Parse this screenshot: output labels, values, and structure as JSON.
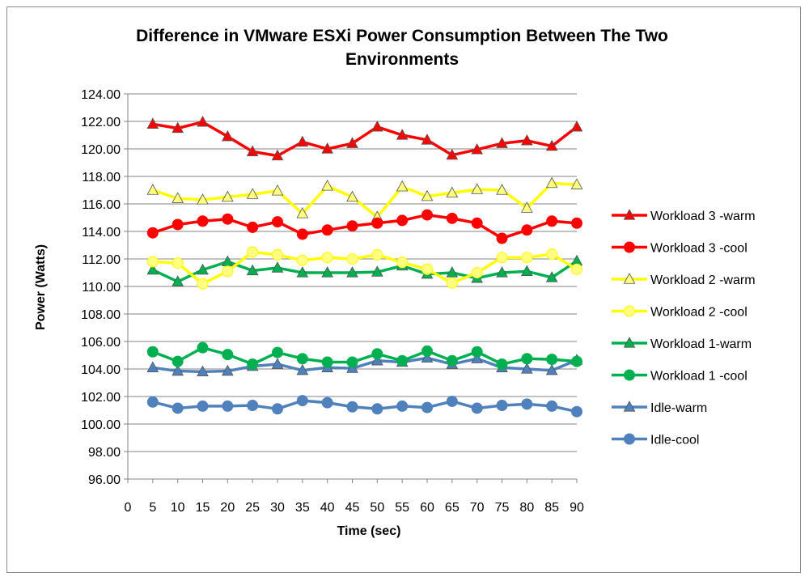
{
  "chart_data": {
    "type": "line",
    "title_lines": [
      "Difference in VMware ESXi Power Consumption  Between The Two",
      "Environments"
    ],
    "xlabel": "Time (sec)",
    "ylabel": "Power (Watts)",
    "x_ticks": [
      "0",
      "5",
      "10",
      "15",
      "20",
      "25",
      "30",
      "35",
      "40",
      "45",
      "50",
      "55",
      "60",
      "65",
      "70",
      "75",
      "80",
      "85",
      "90"
    ],
    "x": [
      5,
      10,
      15,
      20,
      25,
      30,
      35,
      40,
      45,
      50,
      55,
      60,
      65,
      70,
      75,
      80,
      85,
      90
    ],
    "xlim": [
      0,
      90
    ],
    "y_ticks": [
      "96.00",
      "98.00",
      "100.00",
      "102.00",
      "104.00",
      "106.00",
      "108.00",
      "110.00",
      "112.00",
      "114.00",
      "116.00",
      "118.00",
      "120.00",
      "122.00",
      "124.00"
    ],
    "ylim": [
      96,
      124
    ],
    "grid": "horizontal",
    "legend_position": "right",
    "series": [
      {
        "name": "Workload 3 -warm",
        "color": "#ff0000",
        "marker": "triangle",
        "marker_fill": "#ff0000",
        "values": [
          121.8,
          121.5,
          121.95,
          120.9,
          119.8,
          119.5,
          120.5,
          120.0,
          120.4,
          121.6,
          121.0,
          120.65,
          119.55,
          119.95,
          120.4,
          120.6,
          120.2,
          121.6
        ]
      },
      {
        "name": "Workload 3 -cool",
        "color": "#ff0000",
        "marker": "circle",
        "marker_fill": "#ff0000",
        "values": [
          113.9,
          114.5,
          114.75,
          114.9,
          114.3,
          114.7,
          113.8,
          114.1,
          114.4,
          114.6,
          114.8,
          115.2,
          114.95,
          114.6,
          113.5,
          114.1,
          114.75,
          114.6
        ]
      },
      {
        "name": "Workload 2 -warm",
        "color": "#ffff00",
        "marker": "triangle",
        "marker_fill": "#ffff80",
        "values": [
          117.0,
          116.4,
          116.3,
          116.5,
          116.7,
          116.95,
          115.3,
          117.3,
          116.5,
          115.05,
          117.25,
          116.55,
          116.8,
          117.05,
          117.0,
          115.7,
          117.5,
          117.4
        ]
      },
      {
        "name": "Workload 2 -cool",
        "color": "#ffff00",
        "marker": "circle",
        "marker_fill": "#ffff80",
        "values": [
          111.8,
          111.7,
          110.2,
          111.1,
          112.5,
          112.3,
          111.9,
          112.1,
          112.0,
          112.3,
          111.75,
          111.25,
          110.25,
          111.0,
          112.1,
          112.1,
          112.35,
          111.25
        ]
      },
      {
        "name": "Workload 1-warm",
        "color": "#00b050",
        "marker": "triangle",
        "marker_fill": "#00b050",
        "values": [
          111.2,
          110.35,
          111.2,
          111.8,
          111.15,
          111.35,
          111.0,
          111.0,
          111.0,
          111.05,
          111.5,
          110.9,
          111.0,
          110.6,
          111.0,
          111.1,
          110.65,
          111.85
        ]
      },
      {
        "name": "Workload 1 -cool",
        "color": "#00b050",
        "marker": "circle",
        "marker_fill": "#00b050",
        "values": [
          105.25,
          104.55,
          105.55,
          105.05,
          104.35,
          105.2,
          104.75,
          104.5,
          104.5,
          105.1,
          104.6,
          105.3,
          104.6,
          105.25,
          104.35,
          104.75,
          104.7,
          104.55
        ]
      },
      {
        "name": "Idle-warm",
        "color": "#4f81bd",
        "marker": "triangle",
        "marker_fill": "#4f81bd",
        "values": [
          104.1,
          103.85,
          103.8,
          103.85,
          104.2,
          104.35,
          103.9,
          104.1,
          104.05,
          104.6,
          104.5,
          104.8,
          104.35,
          104.75,
          104.1,
          104.0,
          103.9,
          104.65
        ]
      },
      {
        "name": "Idle-cool",
        "color": "#4f81bd",
        "marker": "circle",
        "marker_fill": "#4f81bd",
        "values": [
          101.6,
          101.15,
          101.3,
          101.3,
          101.35,
          101.1,
          101.7,
          101.55,
          101.25,
          101.1,
          101.3,
          101.2,
          101.65,
          101.15,
          101.35,
          101.45,
          101.3,
          100.9
        ]
      }
    ]
  }
}
